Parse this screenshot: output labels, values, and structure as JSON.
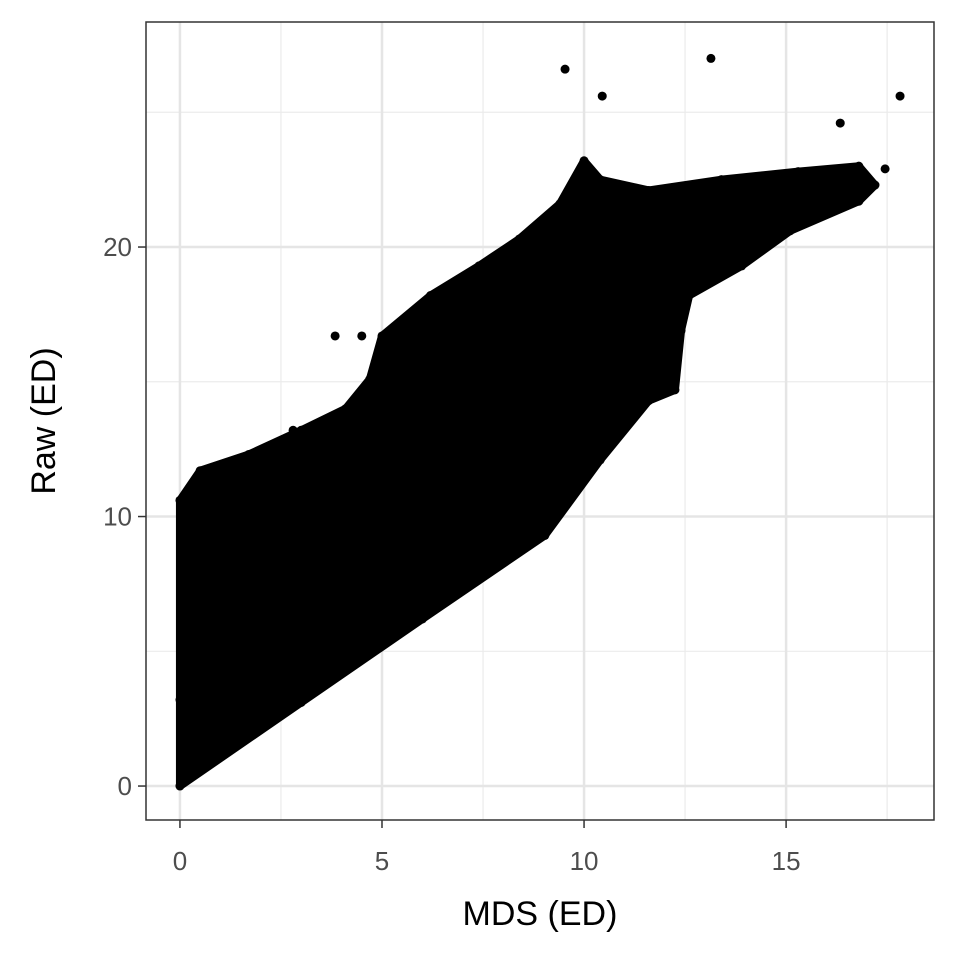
{
  "chart_data": {
    "type": "scatter",
    "x_label": "MDS (ED)",
    "y_label": "Raw (ED)",
    "xlim": [
      -0.84,
      18.66
    ],
    "ylim": [
      -1.26,
      28.35
    ],
    "xticks": [
      0,
      5,
      10,
      15
    ],
    "yticks": [
      0,
      10,
      20
    ],
    "grid": true,
    "series": [
      {
        "color": "#000000",
        "x": [
          0,
          3,
          6,
          9.03,
          10.4,
          11.6,
          12.25,
          12.4,
          12.6,
          13.9,
          15.1,
          16.8,
          17.2,
          16.8,
          15.3,
          13.4,
          11.6,
          10.4,
          10.0,
          9.4,
          8.4,
          7.4,
          6.2,
          5.0,
          4.7,
          4.1,
          3.0,
          1.7,
          0.5,
          0,
          0
        ],
        "y": [
          0,
          3.1,
          6.2,
          9.3,
          12.1,
          14.3,
          14.7,
          16.9,
          18.2,
          19.3,
          20.6,
          21.7,
          22.3,
          23.0,
          22.8,
          22.5,
          22.1,
          22.5,
          23.2,
          21.6,
          20.3,
          19.3,
          18.2,
          16.7,
          15.1,
          14.0,
          13.2,
          12.3,
          11.7,
          10.6,
          3.2
        ]
      },
      {
        "color": "#000000",
        "x": [
          9.53,
          10.45,
          13.14,
          16.34,
          17.82,
          17.45,
          3.84,
          4.5,
          9.58,
          2.8
        ],
        "y": [
          26.6,
          25.6,
          27.0,
          24.6,
          25.6,
          22.9,
          16.7,
          16.7,
          21.6,
          13.2
        ]
      }
    ]
  }
}
